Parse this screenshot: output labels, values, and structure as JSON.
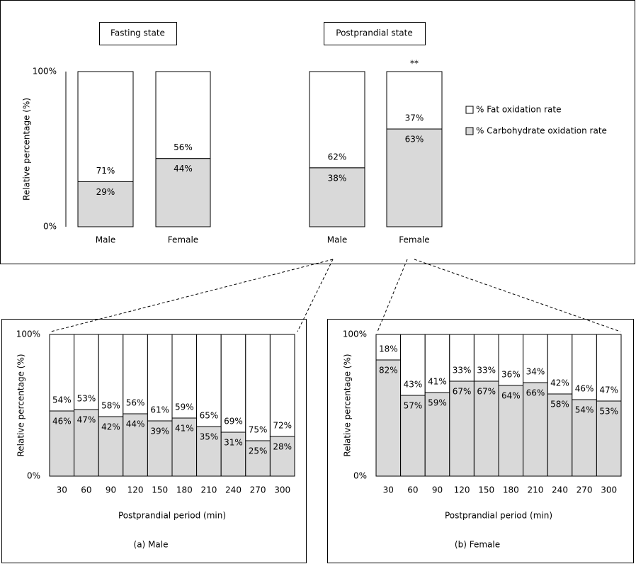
{
  "chart_data": [
    {
      "type": "bar",
      "stacked": true,
      "groups": [
        "Fasting state",
        "Postprandial state"
      ],
      "categories": [
        "Male",
        "Female",
        "Male",
        "Female"
      ],
      "significance": [
        null,
        null,
        null,
        "**"
      ],
      "ylabel": "Relative percentage (%)",
      "ylim": [
        0,
        100
      ],
      "yticks": [
        {
          "value": 0,
          "label": "0%"
        },
        {
          "value": 100,
          "label": "100%"
        }
      ],
      "legend": "right",
      "series": [
        {
          "name": "% Carbohydrate oxidation rate",
          "color": "#d9d9d9",
          "values": [
            29,
            44,
            38,
            63
          ],
          "value_labels": [
            "29%",
            "44%",
            "38%",
            "63%"
          ]
        },
        {
          "name": "% Fat oxidation rate",
          "color": "#ffffff",
          "values": [
            71,
            56,
            62,
            37
          ],
          "value_labels": [
            "71%",
            "56%",
            "62%",
            "37%"
          ]
        }
      ]
    },
    {
      "type": "bar",
      "stacked": true,
      "categories": [
        "30",
        "60",
        "90",
        "120",
        "150",
        "180",
        "210",
        "240",
        "270",
        "300"
      ],
      "xlabel": "Postprandial period (min)",
      "caption": "(a) Male",
      "ylabel": "Relative percentage (%)",
      "ylim": [
        0,
        100
      ],
      "yticks": [
        {
          "value": 0,
          "label": "0%"
        },
        {
          "value": 100,
          "label": "100%"
        }
      ],
      "series": [
        {
          "color": "#d9d9d9",
          "values": [
            46,
            47,
            42,
            44,
            39,
            41,
            35,
            31,
            25,
            28
          ],
          "value_labels": [
            "46%",
            "47%",
            "42%",
            "44%",
            "39%",
            "41%",
            "35%",
            "31%",
            "25%",
            "28%"
          ]
        },
        {
          "color": "#ffffff",
          "values": [
            54,
            53,
            58,
            56,
            61,
            59,
            65,
            69,
            75,
            72
          ],
          "value_labels": [
            "54%",
            "53%",
            "58%",
            "56%",
            "61%",
            "59%",
            "65%",
            "69%",
            "75%",
            "72%"
          ]
        }
      ]
    },
    {
      "type": "bar",
      "stacked": true,
      "categories": [
        "30",
        "60",
        "90",
        "120",
        "150",
        "180",
        "210",
        "240",
        "270",
        "300"
      ],
      "xlabel": "Postprandial period (min)",
      "caption": "(b) Female",
      "ylabel": "Relative percentage (%)",
      "ylim": [
        0,
        100
      ],
      "yticks": [
        {
          "value": 0,
          "label": "0%"
        },
        {
          "value": 100,
          "label": "100%"
        }
      ],
      "series": [
        {
          "color": "#d9d9d9",
          "values": [
            82,
            57,
            59,
            67,
            67,
            64,
            66,
            58,
            54,
            53
          ],
          "value_labels": [
            "82%",
            "57%",
            "59%",
            "67%",
            "67%",
            "64%",
            "66%",
            "58%",
            "54%",
            "53%"
          ]
        },
        {
          "color": "#ffffff",
          "values": [
            18,
            43,
            41,
            33,
            33,
            36,
            34,
            42,
            46,
            47
          ],
          "value_labels": [
            "18%",
            "43%",
            "41%",
            "33%",
            "33%",
            "36%",
            "34%",
            "42%",
            "46%",
            "47%"
          ]
        }
      ]
    }
  ]
}
